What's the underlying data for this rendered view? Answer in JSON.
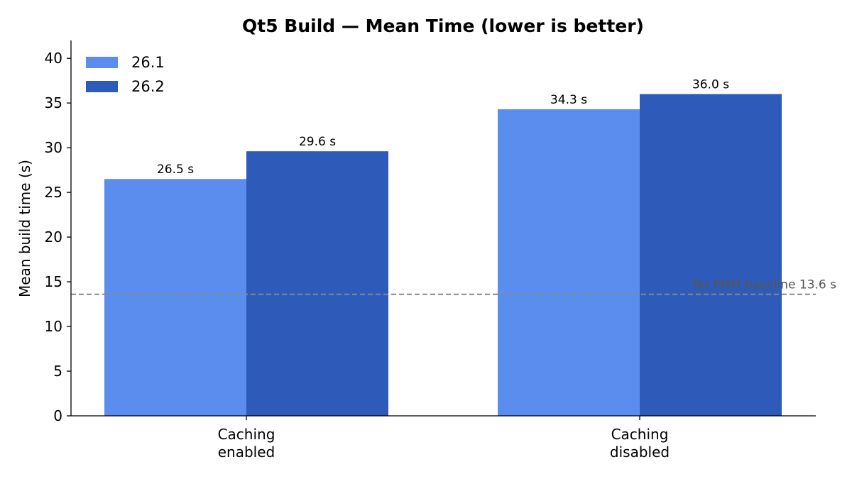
{
  "chart_data": {
    "type": "bar",
    "title": "Qt5 Build — Mean Time (lower is better)",
    "xlabel": "",
    "ylabel": "Mean build time (s)",
    "ylim": [
      0,
      42
    ],
    "yticks": [
      0,
      5,
      10,
      15,
      20,
      25,
      30,
      35,
      40
    ],
    "categories": [
      [
        "Caching",
        "enabled"
      ],
      [
        "Caching",
        "disabled"
      ]
    ],
    "series": [
      {
        "name": "26.1",
        "values": [
          26.5,
          34.3
        ],
        "labels": [
          "26.5 s",
          "34.3 s"
        ],
        "color": "#5b8def"
      },
      {
        "name": "26.2",
        "values": [
          29.6,
          36.0
        ],
        "labels": [
          "29.6 s",
          "36.0 s"
        ],
        "color": "#2e5bba"
      }
    ],
    "reference_line": {
      "value": 13.6,
      "label": "No PMM baseline 13.6 s",
      "color": "#888888",
      "style": "dashed"
    },
    "legend": {
      "position": "top-left"
    },
    "grid": false
  }
}
